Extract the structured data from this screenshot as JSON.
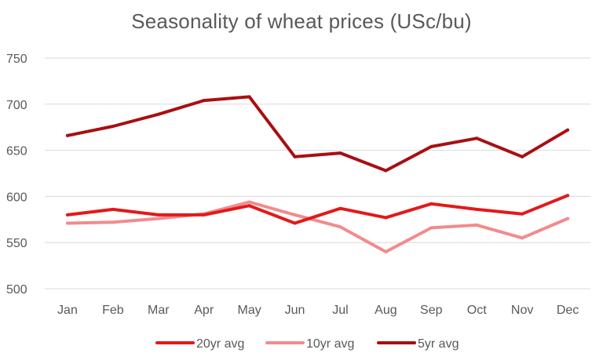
{
  "chart_data": {
    "type": "line",
    "title": "Seasonality of wheat prices (USc/bu)",
    "xlabel": "",
    "ylabel": "",
    "categories": [
      "Jan",
      "Feb",
      "Mar",
      "Apr",
      "May",
      "Jun",
      "Jul",
      "Aug",
      "Sep",
      "Oct",
      "Nov",
      "Dec"
    ],
    "ylim": [
      500,
      750
    ],
    "yticks": [
      500,
      550,
      600,
      650,
      700,
      750
    ],
    "grid": true,
    "legend_position": "bottom",
    "series": [
      {
        "name": "20yr avg",
        "color": "#e3191b",
        "values": [
          580,
          586,
          580,
          580,
          590,
          571,
          587,
          577,
          592,
          586,
          581,
          601
        ]
      },
      {
        "name": "10yr avg",
        "color": "#f28b8c",
        "values": [
          571,
          572,
          576,
          581,
          594,
          580,
          567,
          540,
          566,
          569,
          555,
          576
        ]
      },
      {
        "name": "5yr avg",
        "color": "#a80f12",
        "values": [
          666,
          676,
          689,
          704,
          708,
          643,
          647,
          628,
          654,
          663,
          643,
          672
        ]
      }
    ]
  }
}
